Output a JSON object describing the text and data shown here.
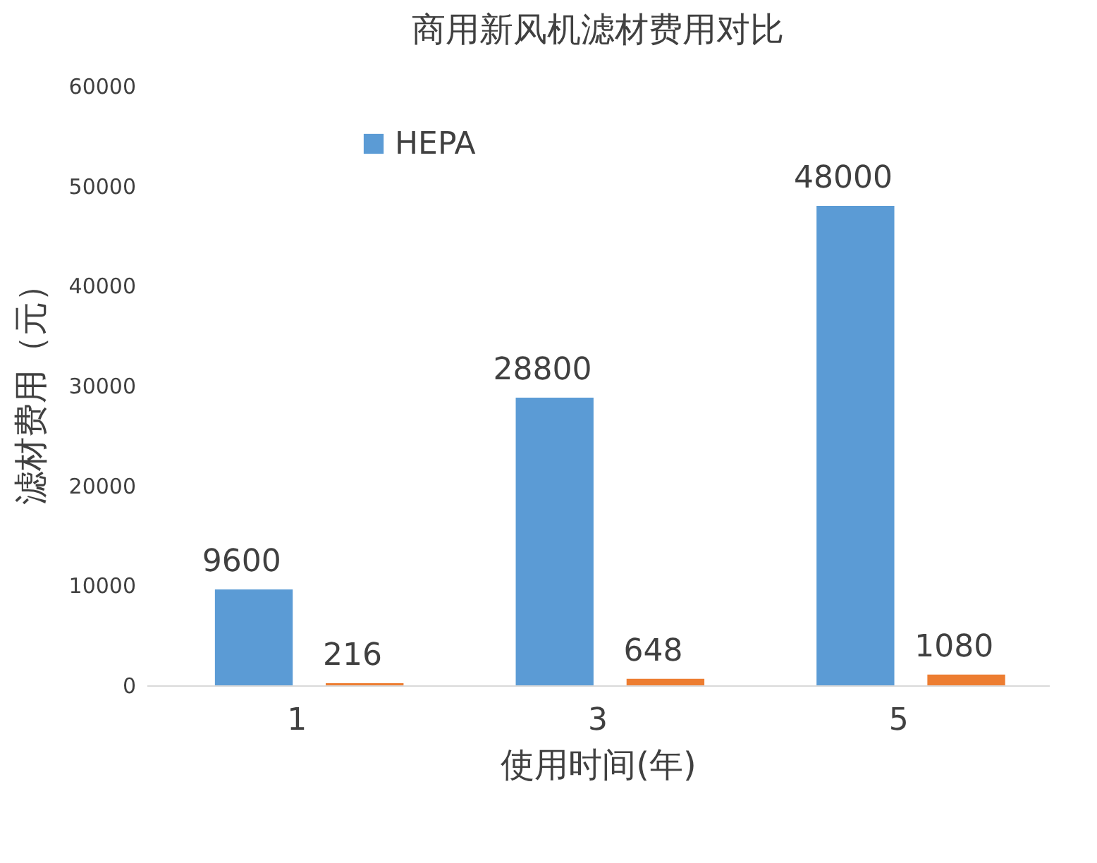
{
  "chart_data": {
    "type": "bar",
    "title": "商用新风机滤材费用对比",
    "xlabel": "使用时间(年)",
    "ylabel": "滤材费用（元）",
    "categories": [
      "1",
      "3",
      "5"
    ],
    "series": [
      {
        "name": "HEPA",
        "color": "#5b9bd5",
        "values": [
          9600,
          28800,
          48000
        ]
      },
      {
        "color": "#ed7d31",
        "values": [
          216,
          648,
          1080
        ]
      }
    ],
    "ylim": [
      0,
      60000
    ],
    "yticks": [
      0,
      10000,
      20000,
      30000,
      40000,
      50000,
      60000
    ],
    "grid": false,
    "legend": "top left",
    "data_labels": true
  }
}
